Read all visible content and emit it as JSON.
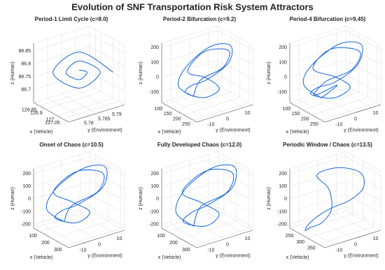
{
  "chart_data": {
    "title": "Evolution of SNF Transportation Risk System Attractors",
    "axis_labels": {
      "x": "x (Vehicle)",
      "y": "y (Environment)",
      "z": "z (Human)"
    },
    "subplots": [
      {
        "type": "line3d",
        "title": "Period-1 Limit Cycle (c=8.0)",
        "color": "#1566d6",
        "xlim": [
          126.8,
          127.1
        ],
        "xticks": [
          126.85,
          126.9,
          127,
          127.05
        ],
        "ylim": [
          5.775,
          5.795
        ],
        "yticks": [
          5.78,
          5.785,
          5.79
        ],
        "zlim": [
          86.65,
          86.88
        ],
        "zticks": [
          86.7,
          86.75,
          86.8,
          86.85
        ],
        "x": [
          127.05,
          126.95,
          126.87,
          126.95,
          127.01,
          126.95,
          126.91,
          126.95,
          126.97,
          126.95
        ],
        "y": [
          5.793,
          5.785,
          5.779,
          5.785,
          5.79,
          5.785,
          5.782,
          5.785,
          5.787,
          5.785
        ],
        "z": [
          86.77,
          86.85,
          86.77,
          86.71,
          86.77,
          86.815,
          86.77,
          86.743,
          86.77,
          86.78
        ]
      },
      {
        "type": "line3d",
        "title": "Period-2 Bifurcation (c=9.2)",
        "color": "#1566d6",
        "xlim": [
          80,
          270
        ],
        "xticks": [
          100,
          150,
          200,
          250
        ],
        "ylim": [
          -15,
          15
        ],
        "yticks": [
          -10,
          0,
          10
        ],
        "zlim": [
          -170,
          230
        ],
        "zticks": [
          -100,
          0,
          100,
          200
        ],
        "x": [
          150,
          120,
          110,
          140,
          200,
          240,
          220,
          170,
          140,
          160,
          190,
          170,
          150,
          160,
          210,
          230,
          190,
          150
        ],
        "y": [
          -5,
          -10,
          -5,
          5,
          10,
          5,
          -5,
          -8,
          -8,
          0,
          5,
          0,
          -8,
          0,
          8,
          3,
          -5,
          -5
        ],
        "z": [
          -120,
          -50,
          50,
          170,
          200,
          130,
          40,
          -20,
          -90,
          -140,
          -80,
          0,
          60,
          170,
          180,
          100,
          20,
          -120
        ]
      },
      {
        "type": "line3d",
        "title": "Period-4 Bifurcation (c=9.45)",
        "color": "#1566d6",
        "xlim": [
          80,
          270
        ],
        "xticks": [
          100,
          150,
          200,
          250
        ],
        "ylim": [
          -15,
          15
        ],
        "yticks": [
          -10,
          0,
          10
        ],
        "zlim": [
          -170,
          230
        ],
        "zticks": [
          -100,
          0,
          100,
          200
        ],
        "x": [
          150,
          115,
          105,
          135,
          205,
          245,
          225,
          170,
          135,
          155,
          195,
          175,
          145,
          150,
          215,
          235,
          185,
          140,
          165,
          150
        ],
        "y": [
          -5,
          -11,
          -6,
          6,
          11,
          5,
          -5,
          -9,
          -9,
          1,
          6,
          0,
          -9,
          0,
          9,
          3,
          -6,
          -8,
          2,
          -5
        ],
        "z": [
          -130,
          -40,
          60,
          180,
          205,
          120,
          30,
          -30,
          -100,
          -150,
          -70,
          10,
          80,
          180,
          175,
          90,
          10,
          -110,
          -60,
          -130
        ]
      },
      {
        "type": "line3d",
        "title": "Onset of Chaos (c=10.5)",
        "color": "#1566d6",
        "xlim": [
          50,
          330
        ],
        "xticks": [
          100,
          200,
          300
        ],
        "ylim": [
          -15,
          15
        ],
        "yticks": [
          -10,
          0,
          10
        ],
        "zlim": [
          -230,
          240
        ],
        "zticks": [
          -200,
          -100,
          0,
          100,
          200
        ],
        "x": [
          160,
          110,
          90,
          130,
          220,
          290,
          260,
          190,
          150,
          170,
          200,
          160,
          120,
          140,
          230,
          280,
          220,
          160
        ],
        "y": [
          -6,
          -12,
          -6,
          6,
          12,
          6,
          -5,
          -9,
          -10,
          0,
          5,
          -2,
          -9,
          2,
          10,
          4,
          -6,
          -6
        ],
        "z": [
          -160,
          -60,
          60,
          190,
          225,
          130,
          30,
          -40,
          -120,
          -190,
          -110,
          -20,
          70,
          190,
          190,
          100,
          0,
          -160
        ]
      },
      {
        "type": "line3d",
        "title": "Fully Developed Chaos (c=12.0)",
        "color": "#1566d6",
        "xlim": [
          50,
          330
        ],
        "xticks": [
          100,
          200,
          300
        ],
        "ylim": [
          -15,
          15
        ],
        "yticks": [
          -10,
          0,
          10
        ],
        "zlim": [
          -230,
          240
        ],
        "zticks": [
          -200,
          -100,
          0,
          100,
          200
        ],
        "x": [
          170,
          120,
          100,
          140,
          230,
          300,
          270,
          200,
          150,
          180,
          210,
          170,
          125,
          150,
          240,
          290,
          230,
          170
        ],
        "y": [
          -6,
          -12,
          -6,
          6,
          12,
          6,
          -5,
          -9,
          -10,
          0,
          5,
          -2,
          -9,
          2,
          10,
          4,
          -6,
          -6
        ],
        "z": [
          -190,
          -80,
          60,
          200,
          230,
          130,
          30,
          -50,
          -150,
          -210,
          -120,
          -20,
          70,
          200,
          200,
          100,
          0,
          -190
        ]
      },
      {
        "type": "line3d",
        "title": "Periodic Window / Chaos (c=13.5)",
        "color": "#1566d6",
        "xlim": [
          220,
          380
        ],
        "xticks": [
          250,
          300,
          350
        ],
        "ylim": [
          -15,
          15
        ],
        "yticks": [
          -10,
          0,
          10
        ],
        "zlim": [
          -230,
          240
        ],
        "zticks": [
          -200,
          -100,
          0,
          100,
          200
        ],
        "x": [
          270,
          290,
          300,
          270,
          250,
          280,
          330,
          360,
          350,
          310,
          280,
          260,
          265,
          270
        ],
        "y": [
          -10,
          -6,
          -2,
          0,
          -4,
          4,
          10,
          8,
          2,
          -4,
          -8,
          -10,
          -12,
          -10
        ],
        "z": [
          -200,
          -160,
          -60,
          60,
          170,
          220,
          200,
          120,
          40,
          -40,
          -120,
          -190,
          -220,
          -200
        ]
      }
    ]
  }
}
